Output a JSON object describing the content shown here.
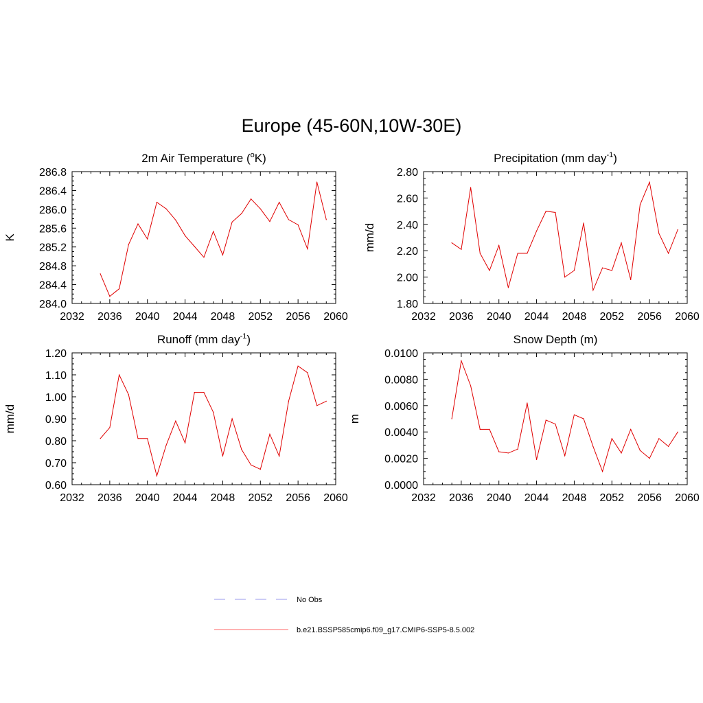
{
  "figure": {
    "title": "Europe (45-60N,10W-30E)"
  },
  "colors": {
    "model_line": "#e00000",
    "obs_line": "#9999ee",
    "axis": "#000000"
  },
  "legend": {
    "entries": [
      {
        "label": "No Obs",
        "style": "dashed",
        "color": "#9999ee"
      },
      {
        "label": "b.e21.BSSP585cmip6.f09_g17.CMIP6-SSP5-8.5.002",
        "style": "solid",
        "color": "#ff6666"
      }
    ]
  },
  "chart_data": [
    {
      "type": "line",
      "title": "2m Air Temperature (",
      "title_sup": "o",
      "title_after": "K)",
      "ylabel": "K",
      "xlim": [
        2032,
        2060
      ],
      "ylim": [
        284.0,
        286.8
      ],
      "xticks": [
        2032,
        2036,
        2040,
        2044,
        2048,
        2052,
        2056,
        2060
      ],
      "yticks": [
        "284.0",
        "284.4",
        "284.8",
        "285.2",
        "285.6",
        "286.0",
        "286.4",
        "286.8"
      ],
      "ytick_values": [
        284.0,
        284.4,
        284.8,
        285.2,
        285.6,
        286.0,
        286.4,
        286.8
      ],
      "x": [
        2035,
        2036,
        2037,
        2038,
        2039,
        2040,
        2041,
        2042,
        2043,
        2044,
        2045,
        2046,
        2047,
        2048,
        2049,
        2050,
        2051,
        2052,
        2053,
        2054,
        2055,
        2056,
        2057,
        2058,
        2059
      ],
      "values": [
        284.63,
        284.15,
        284.31,
        285.25,
        285.69,
        285.37,
        286.15,
        286.01,
        285.77,
        285.44,
        285.21,
        284.98,
        285.53,
        285.03,
        285.73,
        285.91,
        286.22,
        286.01,
        285.74,
        286.15,
        285.78,
        285.67,
        285.16,
        286.58,
        285.78
      ]
    },
    {
      "type": "line",
      "title": "Precipitation (mm day",
      "title_sup": "-1",
      "title_after": ")",
      "ylabel": "mm/d",
      "xlim": [
        2032,
        2060
      ],
      "ylim": [
        1.8,
        2.8
      ],
      "xticks": [
        2032,
        2036,
        2040,
        2044,
        2048,
        2052,
        2056,
        2060
      ],
      "yticks": [
        "1.80",
        "2.00",
        "2.20",
        "2.40",
        "2.60",
        "2.80"
      ],
      "ytick_values": [
        1.8,
        2.0,
        2.2,
        2.4,
        2.6,
        2.8
      ],
      "x": [
        2035,
        2036,
        2037,
        2038,
        2039,
        2040,
        2041,
        2042,
        2043,
        2044,
        2045,
        2046,
        2047,
        2048,
        2049,
        2050,
        2051,
        2052,
        2053,
        2054,
        2055,
        2056,
        2057,
        2058,
        2059
      ],
      "values": [
        2.26,
        2.21,
        2.68,
        2.18,
        2.05,
        2.24,
        1.92,
        2.18,
        2.18,
        2.35,
        2.5,
        2.49,
        2.0,
        2.05,
        2.41,
        1.9,
        2.07,
        2.05,
        2.26,
        1.98,
        2.55,
        2.72,
        2.33,
        2.18,
        2.36
      ]
    },
    {
      "type": "line",
      "title": "Runoff (mm day",
      "title_sup": "-1",
      "title_after": ")",
      "ylabel": "mm/d",
      "xlim": [
        2032,
        2060
      ],
      "ylim": [
        0.6,
        1.2
      ],
      "xticks": [
        2032,
        2036,
        2040,
        2044,
        2048,
        2052,
        2056,
        2060
      ],
      "yticks": [
        "0.60",
        "0.70",
        "0.80",
        "0.90",
        "1.00",
        "1.10",
        "1.20"
      ],
      "ytick_values": [
        0.6,
        0.7,
        0.8,
        0.9,
        1.0,
        1.1,
        1.2
      ],
      "x": [
        2035,
        2036,
        2037,
        2038,
        2039,
        2040,
        2041,
        2042,
        2043,
        2044,
        2045,
        2046,
        2047,
        2048,
        2049,
        2050,
        2051,
        2052,
        2053,
        2054,
        2055,
        2056,
        2057,
        2058,
        2059
      ],
      "values": [
        0.81,
        0.86,
        1.1,
        1.01,
        0.81,
        0.81,
        0.64,
        0.78,
        0.89,
        0.79,
        1.02,
        1.02,
        0.93,
        0.73,
        0.9,
        0.76,
        0.69,
        0.67,
        0.83,
        0.73,
        0.98,
        1.14,
        1.11,
        0.96,
        0.98
      ]
    },
    {
      "type": "line",
      "title": "Snow Depth (m)",
      "title_sup": "",
      "title_after": "",
      "ylabel": "m",
      "xlim": [
        2032,
        2060
      ],
      "ylim": [
        0.0,
        0.01
      ],
      "xticks": [
        2032,
        2036,
        2040,
        2044,
        2048,
        2052,
        2056,
        2060
      ],
      "yticks": [
        "0.0000",
        "0.0020",
        "0.0040",
        "0.0060",
        "0.0080",
        "0.0100"
      ],
      "ytick_values": [
        0.0,
        0.002,
        0.004,
        0.006,
        0.008,
        0.01
      ],
      "x": [
        2035,
        2036,
        2037,
        2038,
        2039,
        2040,
        2041,
        2042,
        2043,
        2044,
        2045,
        2046,
        2047,
        2048,
        2049,
        2050,
        2051,
        2052,
        2053,
        2054,
        2055,
        2056,
        2057,
        2058,
        2059
      ],
      "values": [
        0.005,
        0.0094,
        0.0075,
        0.0042,
        0.0042,
        0.0025,
        0.0024,
        0.0027,
        0.0062,
        0.0019,
        0.0049,
        0.0046,
        0.0022,
        0.0053,
        0.005,
        0.0029,
        0.001,
        0.0035,
        0.0024,
        0.0042,
        0.0026,
        0.002,
        0.0035,
        0.0029,
        0.004
      ]
    }
  ]
}
